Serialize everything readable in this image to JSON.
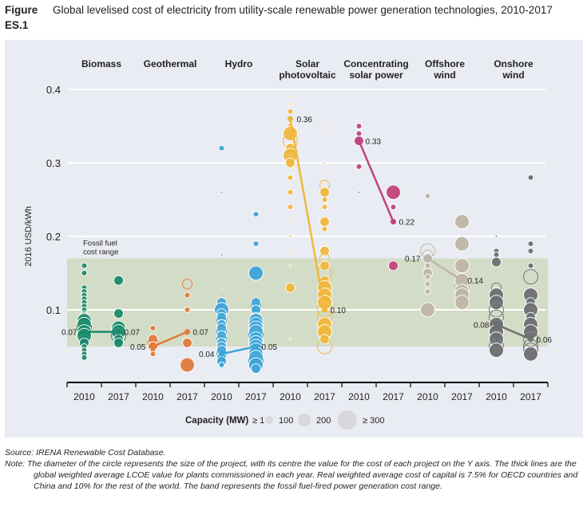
{
  "figure": {
    "number": "Figure ES.1",
    "title": "Global levelised cost of electricity from utility-scale renewable power generation technologies, 2010-2017"
  },
  "footer": {
    "source": "Source: IRENA Renewable Cost Database.",
    "note": "Note: The diameter of the circle represents the size of the project, with its centre the value for the cost of each project on the Y axis. The thick lines are the global weighted average LCOE value for plants commissioned in each year. Real weighted average cost of capital is 7.5% for OECD countries and China and 10% for the rest of the world. The band represents the fossil fuel-fired power generation cost range."
  },
  "chart_data": {
    "type": "scatter",
    "title": "Global levelised cost of electricity from utility-scale renewable power generation technologies, 2010-2017",
    "ylabel": "2016 USD/kWh",
    "xlabel": "",
    "ylim": [
      0,
      0.4
    ],
    "yticks": [
      0.1,
      0.2,
      0.3,
      0.4
    ],
    "ytick_labels": [
      "0.1",
      "0.2",
      "0.3",
      "0.4"
    ],
    "grid": true,
    "band": {
      "label": "Fossil fuel cost range",
      "low": 0.05,
      "high": 0.17,
      "color": "#d3dcc6"
    },
    "x_tick_labels": [
      "2010",
      "2017",
      "2010",
      "2017",
      "2010",
      "2017",
      "2010",
      "2017",
      "2010",
      "2017",
      "2010",
      "2017",
      "2010",
      "2017"
    ],
    "legend": {
      "title": "Capacity (MW)",
      "entries": [
        "≥ 1",
        "100",
        "200",
        "≥ 300"
      ],
      "placement": "bottom"
    },
    "series": [
      {
        "name": "Biomass",
        "color": "#1b8a6b",
        "avg_2010": 0.07,
        "avg_2017": 0.07,
        "labels": [
          "0.07",
          "0.07"
        ],
        "points_2010": [
          [
            0.16,
            1
          ],
          [
            0.15,
            1
          ],
          [
            0.13,
            1
          ],
          [
            0.125,
            1
          ],
          [
            0.12,
            1
          ],
          [
            0.115,
            1
          ],
          [
            0.11,
            1
          ],
          [
            0.105,
            1
          ],
          [
            0.1,
            1
          ],
          [
            0.095,
            1
          ],
          [
            0.09,
            2
          ],
          [
            0.085,
            3
          ],
          [
            0.08,
            3
          ],
          [
            0.075,
            3
          ],
          [
            0.07,
            3
          ],
          [
            0.065,
            3
          ],
          [
            0.06,
            2
          ],
          [
            0.055,
            2
          ],
          [
            0.05,
            1
          ],
          [
            0.045,
            1
          ],
          [
            0.04,
            1
          ],
          [
            0.035,
            1
          ]
        ],
        "points_2017": [
          [
            0.14,
            2
          ],
          [
            0.095,
            2
          ],
          [
            0.075,
            3
          ],
          [
            0.07,
            3
          ],
          [
            0.065,
            3
          ],
          [
            0.06,
            2
          ],
          [
            0.055,
            2
          ]
        ]
      },
      {
        "name": "Geothermal",
        "color": "#e07b39",
        "avg_2010": 0.05,
        "avg_2017": 0.07,
        "labels": [
          "0.05",
          "0.07"
        ],
        "points_2010": [
          [
            0.075,
            1
          ],
          [
            0.06,
            2
          ],
          [
            0.055,
            2
          ],
          [
            0.05,
            2
          ],
          [
            0.045,
            1
          ],
          [
            0.04,
            1
          ]
        ],
        "points_2017": [
          [
            0.135,
            2
          ],
          [
            0.12,
            1
          ],
          [
            0.1,
            1
          ],
          [
            0.055,
            2
          ],
          [
            0.025,
            3
          ]
        ]
      },
      {
        "name": "Hydro",
        "color": "#3fa5d8",
        "avg_2010": 0.04,
        "avg_2017": 0.05,
        "labels": [
          "0.04",
          "0.05"
        ],
        "points_2010": [
          [
            0.32,
            1
          ],
          [
            0.26,
            0
          ],
          [
            0.175,
            0
          ],
          [
            0.13,
            0
          ],
          [
            0.11,
            2
          ],
          [
            0.1,
            3
          ],
          [
            0.095,
            2
          ],
          [
            0.09,
            2
          ],
          [
            0.085,
            2
          ],
          [
            0.08,
            2
          ],
          [
            0.075,
            2
          ],
          [
            0.07,
            2
          ],
          [
            0.065,
            2
          ],
          [
            0.06,
            2
          ],
          [
            0.055,
            2
          ],
          [
            0.05,
            2
          ],
          [
            0.045,
            2
          ],
          [
            0.04,
            2
          ],
          [
            0.035,
            2
          ],
          [
            0.03,
            2
          ],
          [
            0.025,
            1
          ]
        ],
        "points_2017": [
          [
            0.23,
            1
          ],
          [
            0.19,
            1
          ],
          [
            0.15,
            3
          ],
          [
            0.11,
            2
          ],
          [
            0.105,
            2
          ],
          [
            0.1,
            2
          ],
          [
            0.09,
            2
          ],
          [
            0.085,
            3
          ],
          [
            0.08,
            3
          ],
          [
            0.075,
            3
          ],
          [
            0.07,
            3
          ],
          [
            0.065,
            3
          ],
          [
            0.06,
            3
          ],
          [
            0.055,
            3
          ],
          [
            0.05,
            3
          ],
          [
            0.045,
            3
          ],
          [
            0.04,
            3
          ],
          [
            0.035,
            3
          ],
          [
            0.03,
            3
          ],
          [
            0.025,
            3
          ],
          [
            0.02,
            2
          ]
        ]
      },
      {
        "name": "Solar photovoltaic",
        "color": "#f0b83c",
        "avg_2010": 0.36,
        "avg_2017": 0.1,
        "labels": [
          "0.36",
          "0.10"
        ],
        "points_2010": [
          [
            0.39,
            0
          ],
          [
            0.38,
            0
          ],
          [
            0.37,
            1
          ],
          [
            0.35,
            1
          ],
          [
            0.34,
            3
          ],
          [
            0.33,
            3
          ],
          [
            0.32,
            2
          ],
          [
            0.31,
            3
          ],
          [
            0.3,
            2
          ],
          [
            0.28,
            1
          ],
          [
            0.26,
            1
          ],
          [
            0.24,
            1
          ],
          [
            0.22,
            0
          ],
          [
            0.2,
            0
          ],
          [
            0.18,
            0
          ],
          [
            0.16,
            0
          ],
          [
            0.13,
            2
          ],
          [
            0.06,
            0
          ]
        ],
        "points_2017": [
          [
            0.355,
            0
          ],
          [
            0.34,
            0
          ],
          [
            0.3,
            0
          ],
          [
            0.29,
            0
          ],
          [
            0.27,
            2
          ],
          [
            0.26,
            2
          ],
          [
            0.25,
            1
          ],
          [
            0.24,
            1
          ],
          [
            0.22,
            2
          ],
          [
            0.21,
            1
          ],
          [
            0.19,
            0
          ],
          [
            0.18,
            2
          ],
          [
            0.17,
            2
          ],
          [
            0.16,
            2
          ],
          [
            0.15,
            3
          ],
          [
            0.14,
            2
          ],
          [
            0.13,
            3
          ],
          [
            0.12,
            3
          ],
          [
            0.11,
            3
          ],
          [
            0.1,
            3
          ],
          [
            0.09,
            3
          ],
          [
            0.08,
            3
          ],
          [
            0.07,
            3
          ],
          [
            0.06,
            2
          ],
          [
            0.05,
            3
          ]
        ]
      },
      {
        "name": "Concentrating solar power",
        "color": "#c2447f",
        "avg_2010": 0.33,
        "avg_2017": 0.22,
        "labels": [
          "0.33",
          "0.22"
        ],
        "points_2010": [
          [
            0.35,
            1
          ],
          [
            0.34,
            1
          ],
          [
            0.33,
            2
          ],
          [
            0.295,
            1
          ],
          [
            0.26,
            0
          ]
        ],
        "points_2017": [
          [
            0.26,
            3
          ],
          [
            0.24,
            1
          ],
          [
            0.16,
            2
          ]
        ]
      },
      {
        "name": "Offshore wind",
        "color": "#bfb6a8",
        "avg_2010": 0.17,
        "avg_2017": 0.14,
        "labels": [
          "0.17",
          "0.14"
        ],
        "points_2010": [
          [
            0.255,
            1
          ],
          [
            0.22,
            0
          ],
          [
            0.18,
            3
          ],
          [
            0.175,
            2
          ],
          [
            0.17,
            2
          ],
          [
            0.16,
            1
          ],
          [
            0.15,
            2
          ],
          [
            0.145,
            1
          ],
          [
            0.135,
            1
          ],
          [
            0.125,
            1
          ],
          [
            0.1,
            3
          ]
        ],
        "points_2017": [
          [
            0.235,
            0
          ],
          [
            0.22,
            3
          ],
          [
            0.19,
            3
          ],
          [
            0.16,
            3
          ],
          [
            0.14,
            3
          ],
          [
            0.13,
            3
          ],
          [
            0.125,
            3
          ],
          [
            0.12,
            3
          ],
          [
            0.11,
            3
          ]
        ]
      },
      {
        "name": "Onshore wind",
        "color": "#6f6f73",
        "avg_2010": 0.08,
        "avg_2017": 0.06,
        "labels": [
          "0.08",
          "0.06"
        ],
        "points_2010": [
          [
            0.2,
            0
          ],
          [
            0.18,
            1
          ],
          [
            0.175,
            1
          ],
          [
            0.165,
            2
          ],
          [
            0.13,
            2
          ],
          [
            0.12,
            3
          ],
          [
            0.11,
            3
          ],
          [
            0.1,
            3
          ],
          [
            0.09,
            3
          ],
          [
            0.08,
            3
          ],
          [
            0.07,
            3
          ],
          [
            0.06,
            3
          ],
          [
            0.05,
            3
          ],
          [
            0.045,
            3
          ]
        ],
        "points_2017": [
          [
            0.28,
            1
          ],
          [
            0.19,
            1
          ],
          [
            0.18,
            1
          ],
          [
            0.16,
            1
          ],
          [
            0.145,
            3
          ],
          [
            0.12,
            3
          ],
          [
            0.11,
            2
          ],
          [
            0.1,
            3
          ],
          [
            0.09,
            2
          ],
          [
            0.08,
            3
          ],
          [
            0.07,
            3
          ],
          [
            0.06,
            3
          ],
          [
            0.05,
            3
          ],
          [
            0.045,
            3
          ],
          [
            0.04,
            3
          ]
        ]
      }
    ]
  }
}
